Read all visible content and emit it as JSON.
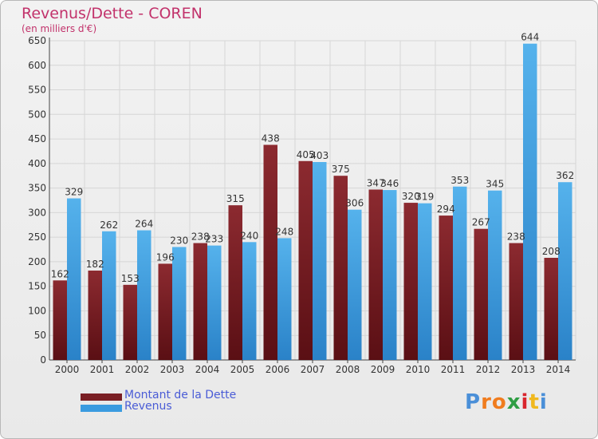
{
  "chart_data": {
    "type": "bar",
    "title": "Revenus/Dette - COREN",
    "subtitle": "(en milliers d'€)",
    "xlabel": "",
    "ylabel": "",
    "ylim": [
      0,
      650
    ],
    "ytick_step": 50,
    "grid": true,
    "legend_position": "bottom-left",
    "categories": [
      "2000",
      "2001",
      "2002",
      "2003",
      "2004",
      "2005",
      "2006",
      "2007",
      "2008",
      "2009",
      "2010",
      "2011",
      "2012",
      "2013",
      "2014"
    ],
    "series": [
      {
        "name": "Montant de la Dette",
        "color": "#7a1f24",
        "values": [
          162,
          182,
          153,
          196,
          238,
          315,
          438,
          405,
          375,
          347,
          320,
          294,
          267,
          238,
          208
        ]
      },
      {
        "name": "Revenus",
        "color": "#3a9be0",
        "values": [
          329,
          262,
          264,
          230,
          233,
          240,
          248,
          403,
          306,
          346,
          319,
          353,
          345,
          644,
          362
        ]
      }
    ]
  },
  "logo": {
    "letters": [
      "P",
      "r",
      "o",
      "x",
      "i",
      "t",
      "i"
    ],
    "colors": [
      "#4a8fd8",
      "#f07c1e",
      "#f07c1e",
      "#2f9e44",
      "#d9262e",
      "#f0b81e",
      "#4a8fd8"
    ]
  }
}
